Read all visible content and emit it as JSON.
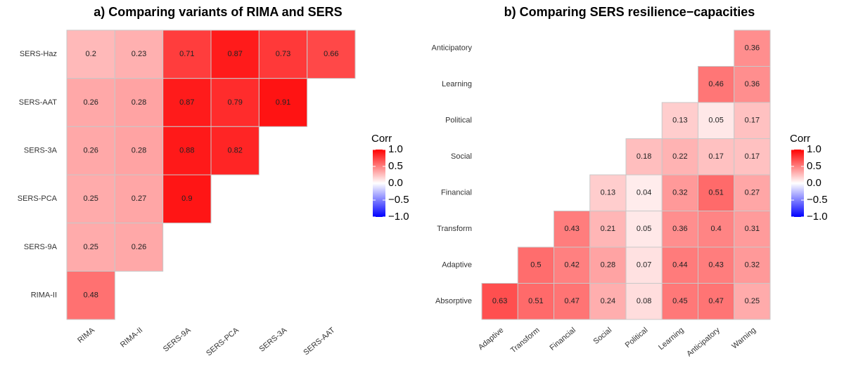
{
  "chart_data": [
    {
      "type": "heatmap",
      "title": "a) Comparing variants of RIMA and SERS",
      "rows": [
        "SERS-Haz",
        "SERS-AAT",
        "SERS-3A",
        "SERS-PCA",
        "SERS-9A",
        "RIMA-II"
      ],
      "columns": [
        "RIMA",
        "RIMA-II",
        "SERS-9A",
        "SERS-PCA",
        "SERS-3A",
        "SERS-AAT"
      ],
      "values": [
        [
          0.2,
          0.23,
          0.71,
          0.87,
          0.73,
          0.66
        ],
        [
          0.26,
          0.28,
          0.87,
          0.79,
          0.91,
          null
        ],
        [
          0.26,
          0.28,
          0.88,
          0.82,
          null,
          null
        ],
        [
          0.25,
          0.27,
          0.9,
          null,
          null,
          null
        ],
        [
          0.25,
          0.26,
          null,
          null,
          null,
          null
        ],
        [
          0.48,
          null,
          null,
          null,
          null,
          null
        ]
      ],
      "legend_title": "Corr",
      "color_range": [
        -1,
        1
      ],
      "colorscale": [
        "#0000FF",
        "#FFFFFF",
        "#FF0000"
      ],
      "colorbar_ticks": [
        {
          "value": 1,
          "label": "1.0"
        },
        {
          "value": 0.5,
          "label": "0.5"
        },
        {
          "value": 0,
          "label": "0.0"
        },
        {
          "value": -0.5,
          "label": "−0.5"
        },
        {
          "value": -1,
          "label": "−1.0"
        }
      ]
    },
    {
      "type": "heatmap",
      "title": "b) Comparing SERS resilience−capacities",
      "rows": [
        "Anticipatory",
        "Learning",
        "Political",
        "Social",
        "Financial",
        "Transform",
        "Adaptive",
        "Absorptive"
      ],
      "columns": [
        "Adaptive",
        "Transform",
        "Financial",
        "Social",
        "Political",
        "Learning",
        "Anticipatory",
        "Warning"
      ],
      "values": [
        [
          null,
          null,
          null,
          null,
          null,
          null,
          null,
          0.36
        ],
        [
          null,
          null,
          null,
          null,
          null,
          null,
          0.46,
          0.36
        ],
        [
          null,
          null,
          null,
          null,
          null,
          0.13,
          0.05,
          0.17
        ],
        [
          null,
          null,
          null,
          null,
          0.18,
          0.22,
          0.17,
          0.17
        ],
        [
          null,
          null,
          null,
          0.13,
          0.04,
          0.32,
          0.51,
          0.27
        ],
        [
          null,
          null,
          0.43,
          0.21,
          0.05,
          0.36,
          0.4,
          0.31
        ],
        [
          null,
          0.5,
          0.42,
          0.28,
          0.07,
          0.44,
          0.43,
          0.32
        ],
        [
          0.63,
          0.51,
          0.47,
          0.24,
          0.08,
          0.45,
          0.47,
          0.25
        ]
      ],
      "legend_title": "Corr",
      "color_range": [
        -1,
        1
      ],
      "colorscale": [
        "#0000FF",
        "#FFFFFF",
        "#FF0000"
      ],
      "colorbar_ticks": [
        {
          "value": 1,
          "label": "1.0"
        },
        {
          "value": 0.5,
          "label": "0.5"
        },
        {
          "value": 0,
          "label": "0.0"
        },
        {
          "value": -0.5,
          "label": "−0.5"
        },
        {
          "value": -1,
          "label": "−1.0"
        }
      ]
    }
  ]
}
